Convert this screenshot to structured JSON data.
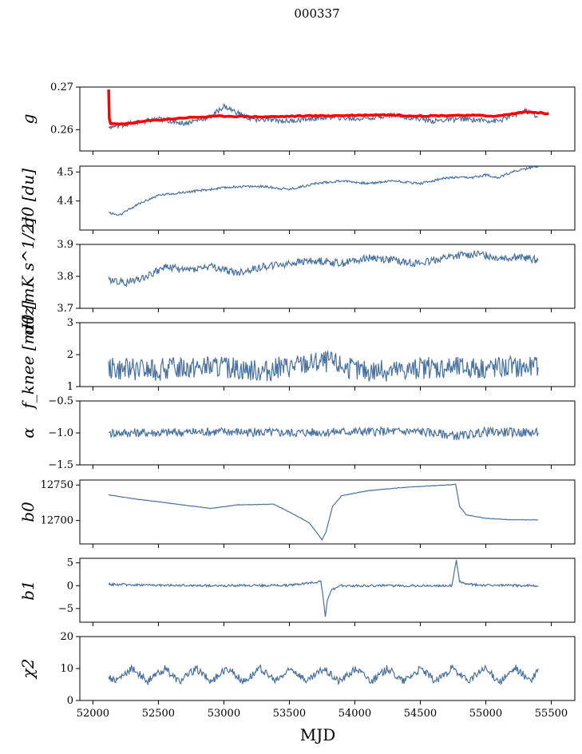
{
  "figure": {
    "title": "000337"
  },
  "chart_data": [
    {
      "type": "line",
      "ylabel": "g",
      "ylim": [
        0.255,
        0.27
      ],
      "yticks": [
        0.26,
        0.27
      ],
      "ytick_labels": [
        "0.26",
        "0.27"
      ],
      "xlim": [
        51900,
        55680
      ],
      "series": [
        {
          "name": "g",
          "color": "#4a72a0",
          "x": [
            52120,
            52300,
            52500,
            52700,
            52900,
            53000,
            53200,
            53500,
            53800,
            54000,
            54300,
            54600,
            54800,
            55100,
            55300,
            55400
          ],
          "values": [
            0.2605,
            0.2615,
            0.2625,
            0.2615,
            0.263,
            0.2655,
            0.2625,
            0.262,
            0.263,
            0.2625,
            0.2635,
            0.262,
            0.2625,
            0.262,
            0.2645,
            0.263
          ]
        },
        {
          "name": "fit",
          "color": "#ff0000",
          "x": [
            52120,
            52125,
            52135,
            52200,
            52400,
            52700,
            53000,
            53300,
            53600,
            53900,
            54200,
            54500,
            54800,
            55100,
            55300,
            55480
          ],
          "values": [
            0.2695,
            0.2625,
            0.2615,
            0.2612,
            0.262,
            0.2628,
            0.2632,
            0.263,
            0.2632,
            0.2633,
            0.2635,
            0.2632,
            0.2634,
            0.2632,
            0.2642,
            0.2638
          ]
        }
      ]
    },
    {
      "type": "line",
      "ylabel": "σ0 [du]",
      "ylim": [
        4.3,
        4.52
      ],
      "yticks": [
        4.4,
        4.5
      ],
      "ytick_labels": [
        "4.4",
        "4.5"
      ],
      "xlim": [
        51900,
        55680
      ],
      "series": [
        {
          "name": "sigma0",
          "color": "#4a72a0",
          "x": [
            52120,
            52200,
            52350,
            52500,
            52700,
            52900,
            53100,
            53300,
            53500,
            53700,
            53900,
            54100,
            54300,
            54500,
            54700,
            54900,
            55000,
            55100,
            55200,
            55300,
            55400
          ],
          "values": [
            4.36,
            4.35,
            4.39,
            4.42,
            4.43,
            4.44,
            4.45,
            4.45,
            4.44,
            4.46,
            4.47,
            4.46,
            4.47,
            4.46,
            4.48,
            4.48,
            4.49,
            4.48,
            4.5,
            4.51,
            4.52
          ]
        }
      ]
    },
    {
      "type": "line",
      "ylabel": "σ0 [mK s^1/2]",
      "ylim": [
        3.7,
        3.9
      ],
      "yticks": [
        3.7,
        3.8,
        3.9
      ],
      "ytick_labels": [
        "3.7",
        "3.8",
        "3.9"
      ],
      "xlim": [
        51900,
        55680
      ],
      "series": [
        {
          "name": "sigma0_mK",
          "color": "#4a72a0",
          "x": [
            52120,
            52250,
            52400,
            52550,
            52700,
            52900,
            53100,
            53300,
            53500,
            53700,
            53900,
            54100,
            54300,
            54500,
            54700,
            54900,
            55100,
            55300,
            55400
          ],
          "values": [
            3.79,
            3.78,
            3.8,
            3.83,
            3.82,
            3.83,
            3.81,
            3.83,
            3.84,
            3.85,
            3.84,
            3.86,
            3.85,
            3.84,
            3.86,
            3.87,
            3.86,
            3.86,
            3.85
          ]
        }
      ]
    },
    {
      "type": "line",
      "ylabel": "f_knee [mHz]",
      "ylim": [
        1,
        3
      ],
      "yticks": [
        1,
        2,
        3
      ],
      "ytick_labels": [
        "1",
        "2",
        "3"
      ],
      "xlim": [
        51900,
        55680
      ],
      "series": [
        {
          "name": "fknee",
          "color": "#4a72a0",
          "x": [
            52120,
            52400,
            52700,
            53000,
            53300,
            53600,
            53800,
            54000,
            54300,
            54600,
            54900,
            55200,
            55400
          ],
          "values": [
            1.6,
            1.5,
            1.6,
            1.6,
            1.5,
            1.7,
            1.8,
            1.5,
            1.5,
            1.6,
            1.6,
            1.6,
            1.6
          ]
        }
      ]
    },
    {
      "type": "line",
      "ylabel": "α",
      "ylim": [
        -1.5,
        -0.5
      ],
      "yticks": [
        -1.5,
        -1.0,
        -0.5
      ],
      "ytick_labels": [
        "−1.5",
        "−1.0",
        "−0.5"
      ],
      "xlim": [
        51900,
        55680
      ],
      "series": [
        {
          "name": "alpha",
          "color": "#4a72a0",
          "x": [
            52120,
            52500,
            53000,
            53500,
            54000,
            54500,
            54800,
            55000,
            55400
          ],
          "values": [
            -1.0,
            -1.0,
            -0.98,
            -1.0,
            -0.98,
            -0.98,
            -1.05,
            -0.98,
            -1.0
          ]
        }
      ]
    },
    {
      "type": "line",
      "ylabel": "b0",
      "ylim": [
        12667,
        12757
      ],
      "yticks": [
        12700,
        12750
      ],
      "ytick_labels": [
        "12700",
        "12750"
      ],
      "xlim": [
        51900,
        55680
      ],
      "series": [
        {
          "name": "b0",
          "color": "#4a72a0",
          "x": [
            52120,
            52300,
            52600,
            52900,
            53100,
            53380,
            53500,
            53650,
            53750,
            53780,
            53830,
            53900,
            54100,
            54400,
            54700,
            54770,
            54800,
            54850,
            55000,
            55200,
            55400
          ],
          "values": [
            12736,
            12731,
            12724,
            12717,
            12722,
            12723,
            12712,
            12697,
            12673,
            12684,
            12720,
            12735,
            12742,
            12747,
            12750,
            12751,
            12720,
            12708,
            12703,
            12701,
            12701
          ]
        }
      ]
    },
    {
      "type": "line",
      "ylabel": "b1",
      "ylim": [
        -8,
        6
      ],
      "yticks": [
        -5,
        0,
        5
      ],
      "ytick_labels": [
        "−5",
        "0",
        "5"
      ],
      "xlim": [
        51900,
        55680
      ],
      "series": [
        {
          "name": "b1",
          "color": "#4a72a0",
          "x": [
            52120,
            52500,
            53000,
            53500,
            53700,
            53740,
            53760,
            53775,
            53790,
            53820,
            53900,
            54300,
            54740,
            54760,
            54775,
            54800,
            54850,
            55000,
            55400
          ],
          "values": [
            0.3,
            0.1,
            0.0,
            0.1,
            0.8,
            1.0,
            -3,
            -7,
            -3,
            -1,
            0.0,
            0.0,
            0.0,
            3,
            5.5,
            1,
            0.3,
            0.1,
            0.0
          ]
        }
      ]
    },
    {
      "type": "line",
      "ylabel": "χ2",
      "ylim": [
        0,
        20
      ],
      "yticks": [
        0,
        10,
        20
      ],
      "ytick_labels": [
        "0",
        "10",
        "20"
      ],
      "xlim": [
        51900,
        55680
      ],
      "xticks": [
        52000,
        52500,
        53000,
        53500,
        54000,
        54500,
        55000,
        55500
      ],
      "xtick_labels": [
        "52000",
        "52500",
        "53000",
        "53500",
        "54000",
        "54500",
        "55000",
        "55500"
      ],
      "xlabel": "MJD",
      "series": [
        {
          "name": "chi2",
          "color": "#4a72a0",
          "x": [
            52120,
            52180,
            52300,
            52420,
            52550,
            52660,
            52790,
            52900,
            53030,
            53150,
            53280,
            53390,
            53520,
            53640,
            53760,
            53880,
            54010,
            54130,
            54250,
            54370,
            54500,
            54620,
            54740,
            54860,
            54990,
            55110,
            55230,
            55350,
            55400
          ],
          "values": [
            7,
            6,
            10,
            6,
            10,
            6,
            10,
            6,
            10,
            6,
            10,
            6,
            10,
            6,
            10,
            6,
            10,
            6,
            10,
            6,
            10,
            6,
            10,
            6,
            10,
            6,
            10,
            6,
            10
          ]
        }
      ]
    }
  ]
}
